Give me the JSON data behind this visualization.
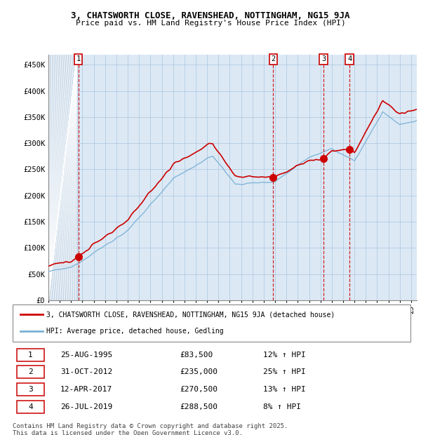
{
  "title": "3, CHATSWORTH CLOSE, RAVENSHEAD, NOTTINGHAM, NG15 9JA",
  "subtitle": "Price paid vs. HM Land Registry's House Price Index (HPI)",
  "ylim": [
    0,
    470000
  ],
  "yticks": [
    0,
    50000,
    100000,
    150000,
    200000,
    250000,
    300000,
    350000,
    400000,
    450000
  ],
  "ytick_labels": [
    "£0",
    "£50K",
    "£100K",
    "£150K",
    "£200K",
    "£250K",
    "£300K",
    "£350K",
    "£400K",
    "£450K"
  ],
  "xlim_start": 1993.0,
  "xlim_end": 2025.5,
  "hpi_color": "#7ab0d4",
  "price_color": "#cc0000",
  "marker_color": "#cc0000",
  "transaction_color": "#cc0000",
  "legend_label_price": "3, CHATSWORTH CLOSE, RAVENSHEAD, NOTTINGHAM, NG15 9JA (detached house)",
  "legend_label_hpi": "HPI: Average price, detached house, Gedling",
  "transactions": [
    {
      "num": 1,
      "date": "25-AUG-1995",
      "year": 1995.64,
      "price": 83500,
      "hpi_pct": "12%",
      "label": "1"
    },
    {
      "num": 2,
      "date": "31-OCT-2012",
      "year": 2012.83,
      "price": 235000,
      "hpi_pct": "25%",
      "label": "2"
    },
    {
      "num": 3,
      "date": "12-APR-2017",
      "year": 2017.28,
      "price": 270500,
      "hpi_pct": "13%",
      "label": "3"
    },
    {
      "num": 4,
      "date": "26-JUL-2019",
      "year": 2019.57,
      "price": 288500,
      "hpi_pct": "8%",
      "label": "4"
    }
  ],
  "table_rows": [
    [
      "1",
      "25-AUG-1995",
      "£83,500",
      "12% ↑ HPI"
    ],
    [
      "2",
      "31-OCT-2012",
      "£235,000",
      "25% ↑ HPI"
    ],
    [
      "3",
      "12-APR-2017",
      "£270,500",
      "13% ↑ HPI"
    ],
    [
      "4",
      "26-JUL-2019",
      "£288,500",
      "8% ↑ HPI"
    ]
  ],
  "footer": "Contains HM Land Registry data © Crown copyright and database right 2025.\nThis data is licensed under the Open Government Licence v3.0.",
  "bg_color": "#dce9f5",
  "hatch_color": "#c8d8e8",
  "grid_color": "#b0c8e0",
  "hatch_end_year": 1995.5
}
